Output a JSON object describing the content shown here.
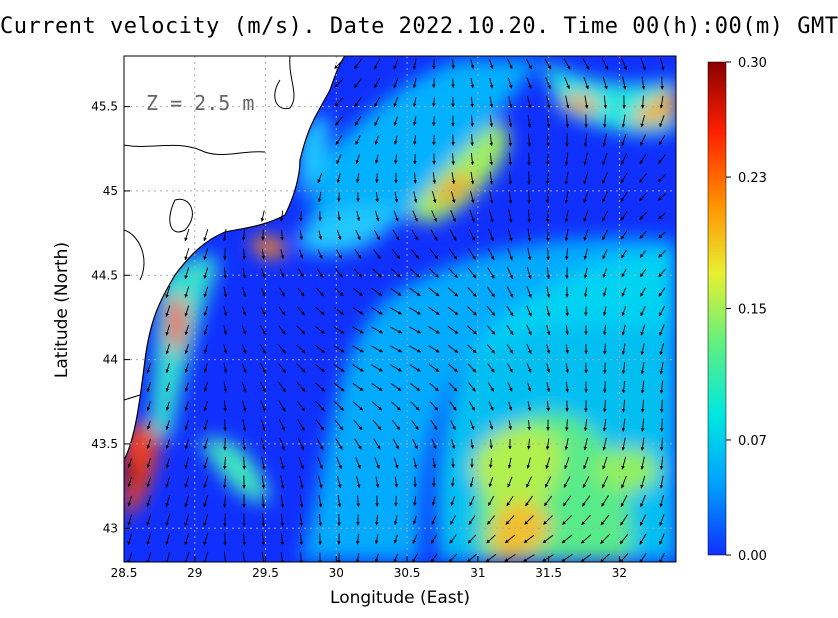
{
  "title": "Current velocity (m/s). Date 2022.10.20. Time 00(h):00(m) GMT",
  "depth_label": "Z = 2.5 m",
  "x_axis": {
    "label": "Longitude (East)",
    "range": [
      28.5,
      32.4
    ],
    "ticks": [
      {
        "value": 28.5,
        "label": "28.5"
      },
      {
        "value": 29,
        "label": "29"
      },
      {
        "value": 29.5,
        "label": "29.5"
      },
      {
        "value": 30,
        "label": "30"
      },
      {
        "value": 30.5,
        "label": "30.5"
      },
      {
        "value": 31,
        "label": "31"
      },
      {
        "value": 31.5,
        "label": "31.5"
      },
      {
        "value": 32,
        "label": "32"
      }
    ]
  },
  "y_axis": {
    "label": "Latitude (North)",
    "range": [
      42.8,
      45.8
    ],
    "ticks": [
      {
        "value": 43,
        "label": "43"
      },
      {
        "value": 43.5,
        "label": "43.5"
      },
      {
        "value": 44,
        "label": "44"
      },
      {
        "value": 44.5,
        "label": "44.5"
      },
      {
        "value": 45,
        "label": "45"
      },
      {
        "value": 45.5,
        "label": "45.5"
      }
    ]
  },
  "colorbar": {
    "min": 0.0,
    "max": 0.3,
    "ticks": [
      {
        "value": 0.3,
        "label": "0.30"
      },
      {
        "value": 0.23,
        "label": "0.23"
      },
      {
        "value": 0.15,
        "label": "0.15"
      },
      {
        "value": 0.07,
        "label": "0.07"
      },
      {
        "value": 0.0,
        "label": "0.00"
      }
    ],
    "colors": [
      "#1030ff",
      "#00a0ff",
      "#00e8e0",
      "#60f080",
      "#e8f030",
      "#ff9000",
      "#ff2000",
      "#8a0000"
    ]
  },
  "map_colors": {
    "land": "#ffffff",
    "coastline": "#000000",
    "grid": "#aaaaaa",
    "arrows": "#000000"
  }
}
